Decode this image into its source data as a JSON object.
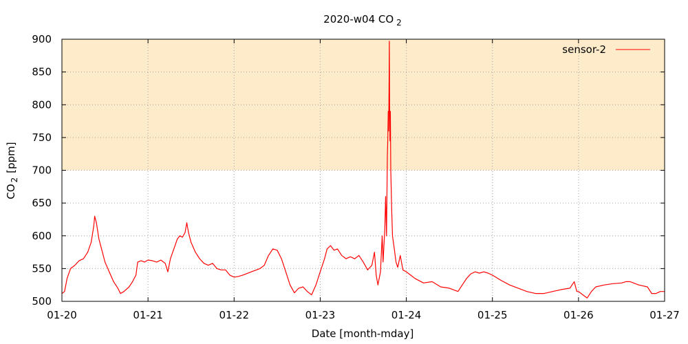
{
  "chart_data": {
    "type": "line",
    "title": "2020-w04 CO",
    "title_sub": "2",
    "xlabel": "Date [month-mday]",
    "ylabel_main": "CO",
    "ylabel_sub": "2",
    "ylabel_unit": "[ppm]",
    "xlim": [
      0,
      7
    ],
    "ylim": [
      500,
      900
    ],
    "x_ticks": [
      {
        "x": 0,
        "label": "01-20"
      },
      {
        "x": 1,
        "label": "01-21"
      },
      {
        "x": 2,
        "label": "01-22"
      },
      {
        "x": 3,
        "label": "01-23"
      },
      {
        "x": 4,
        "label": "01-24"
      },
      {
        "x": 5,
        "label": "01-25"
      },
      {
        "x": 6,
        "label": "01-26"
      },
      {
        "x": 7,
        "label": "01-27"
      }
    ],
    "y_ticks": [
      500,
      550,
      600,
      650,
      700,
      750,
      800,
      850,
      900
    ],
    "grid": true,
    "threshold_band": {
      "from": 700,
      "to": 900,
      "color": "#fdebc9"
    },
    "legend_position": "top-right",
    "series": [
      {
        "name": "sensor-2",
        "color": "#ff0000",
        "x_unit": "days since 01-20",
        "points": [
          [
            0.0,
            512
          ],
          [
            0.03,
            515
          ],
          [
            0.06,
            535
          ],
          [
            0.1,
            550
          ],
          [
            0.15,
            555
          ],
          [
            0.2,
            562
          ],
          [
            0.25,
            565
          ],
          [
            0.3,
            575
          ],
          [
            0.34,
            590
          ],
          [
            0.37,
            615
          ],
          [
            0.38,
            630
          ],
          [
            0.4,
            620
          ],
          [
            0.43,
            595
          ],
          [
            0.46,
            580
          ],
          [
            0.5,
            560
          ],
          [
            0.55,
            545
          ],
          [
            0.6,
            530
          ],
          [
            0.65,
            520
          ],
          [
            0.68,
            512
          ],
          [
            0.72,
            515
          ],
          [
            0.78,
            522
          ],
          [
            0.82,
            530
          ],
          [
            0.86,
            540
          ],
          [
            0.88,
            560
          ],
          [
            0.92,
            562
          ],
          [
            0.96,
            560
          ],
          [
            1.0,
            563
          ],
          [
            1.05,
            562
          ],
          [
            1.1,
            560
          ],
          [
            1.15,
            563
          ],
          [
            1.2,
            558
          ],
          [
            1.23,
            545
          ],
          [
            1.26,
            565
          ],
          [
            1.3,
            580
          ],
          [
            1.34,
            595
          ],
          [
            1.37,
            600
          ],
          [
            1.4,
            598
          ],
          [
            1.43,
            605
          ],
          [
            1.45,
            620
          ],
          [
            1.47,
            605
          ],
          [
            1.5,
            590
          ],
          [
            1.55,
            575
          ],
          [
            1.6,
            565
          ],
          [
            1.65,
            558
          ],
          [
            1.7,
            555
          ],
          [
            1.75,
            558
          ],
          [
            1.8,
            550
          ],
          [
            1.85,
            548
          ],
          [
            1.9,
            548
          ],
          [
            1.95,
            540
          ],
          [
            2.0,
            537
          ],
          [
            2.05,
            538
          ],
          [
            2.1,
            540
          ],
          [
            2.2,
            545
          ],
          [
            2.3,
            550
          ],
          [
            2.35,
            555
          ],
          [
            2.4,
            570
          ],
          [
            2.45,
            580
          ],
          [
            2.5,
            578
          ],
          [
            2.55,
            565
          ],
          [
            2.6,
            545
          ],
          [
            2.65,
            525
          ],
          [
            2.7,
            513
          ],
          [
            2.75,
            520
          ],
          [
            2.8,
            522
          ],
          [
            2.85,
            515
          ],
          [
            2.9,
            510
          ],
          [
            2.95,
            525
          ],
          [
            3.0,
            545
          ],
          [
            3.05,
            565
          ],
          [
            3.08,
            580
          ],
          [
            3.12,
            585
          ],
          [
            3.16,
            578
          ],
          [
            3.2,
            580
          ],
          [
            3.25,
            570
          ],
          [
            3.3,
            565
          ],
          [
            3.35,
            568
          ],
          [
            3.4,
            565
          ],
          [
            3.45,
            570
          ],
          [
            3.5,
            560
          ],
          [
            3.55,
            548
          ],
          [
            3.6,
            555
          ],
          [
            3.63,
            575
          ],
          [
            3.65,
            540
          ],
          [
            3.67,
            525
          ],
          [
            3.7,
            545
          ],
          [
            3.72,
            600
          ],
          [
            3.73,
            560
          ],
          [
            3.75,
            610
          ],
          [
            3.76,
            660
          ],
          [
            3.77,
            600
          ],
          [
            3.78,
            720
          ],
          [
            3.785,
            750
          ],
          [
            3.79,
            790
          ],
          [
            3.795,
            760
          ],
          [
            3.8,
            830
          ],
          [
            3.803,
            897
          ],
          [
            3.806,
            800
          ],
          [
            3.81,
            745
          ],
          [
            3.815,
            790
          ],
          [
            3.82,
            700
          ],
          [
            3.83,
            640
          ],
          [
            3.84,
            600
          ],
          [
            3.86,
            580
          ],
          [
            3.88,
            560
          ],
          [
            3.9,
            552
          ],
          [
            3.93,
            570
          ],
          [
            3.96,
            548
          ],
          [
            4.0,
            545
          ],
          [
            4.05,
            540
          ],
          [
            4.1,
            535
          ],
          [
            4.2,
            528
          ],
          [
            4.3,
            530
          ],
          [
            4.4,
            522
          ],
          [
            4.5,
            520
          ],
          [
            4.6,
            515
          ],
          [
            4.65,
            525
          ],
          [
            4.7,
            535
          ],
          [
            4.75,
            542
          ],
          [
            4.8,
            545
          ],
          [
            4.85,
            543
          ],
          [
            4.9,
            545
          ],
          [
            4.95,
            543
          ],
          [
            5.0,
            540
          ],
          [
            5.1,
            532
          ],
          [
            5.2,
            525
          ],
          [
            5.3,
            520
          ],
          [
            5.4,
            515
          ],
          [
            5.5,
            512
          ],
          [
            5.6,
            512
          ],
          [
            5.7,
            515
          ],
          [
            5.8,
            518
          ],
          [
            5.9,
            520
          ],
          [
            5.95,
            530
          ],
          [
            5.98,
            515
          ],
          [
            6.0,
            515
          ],
          [
            6.05,
            510
          ],
          [
            6.1,
            505
          ],
          [
            6.15,
            515
          ],
          [
            6.2,
            522
          ],
          [
            6.3,
            525
          ],
          [
            6.4,
            527
          ],
          [
            6.5,
            528
          ],
          [
            6.55,
            530
          ],
          [
            6.6,
            530
          ],
          [
            6.7,
            525
          ],
          [
            6.8,
            522
          ],
          [
            6.85,
            512
          ],
          [
            6.9,
            512
          ],
          [
            6.95,
            515
          ],
          [
            7.0,
            515
          ]
        ]
      }
    ]
  }
}
